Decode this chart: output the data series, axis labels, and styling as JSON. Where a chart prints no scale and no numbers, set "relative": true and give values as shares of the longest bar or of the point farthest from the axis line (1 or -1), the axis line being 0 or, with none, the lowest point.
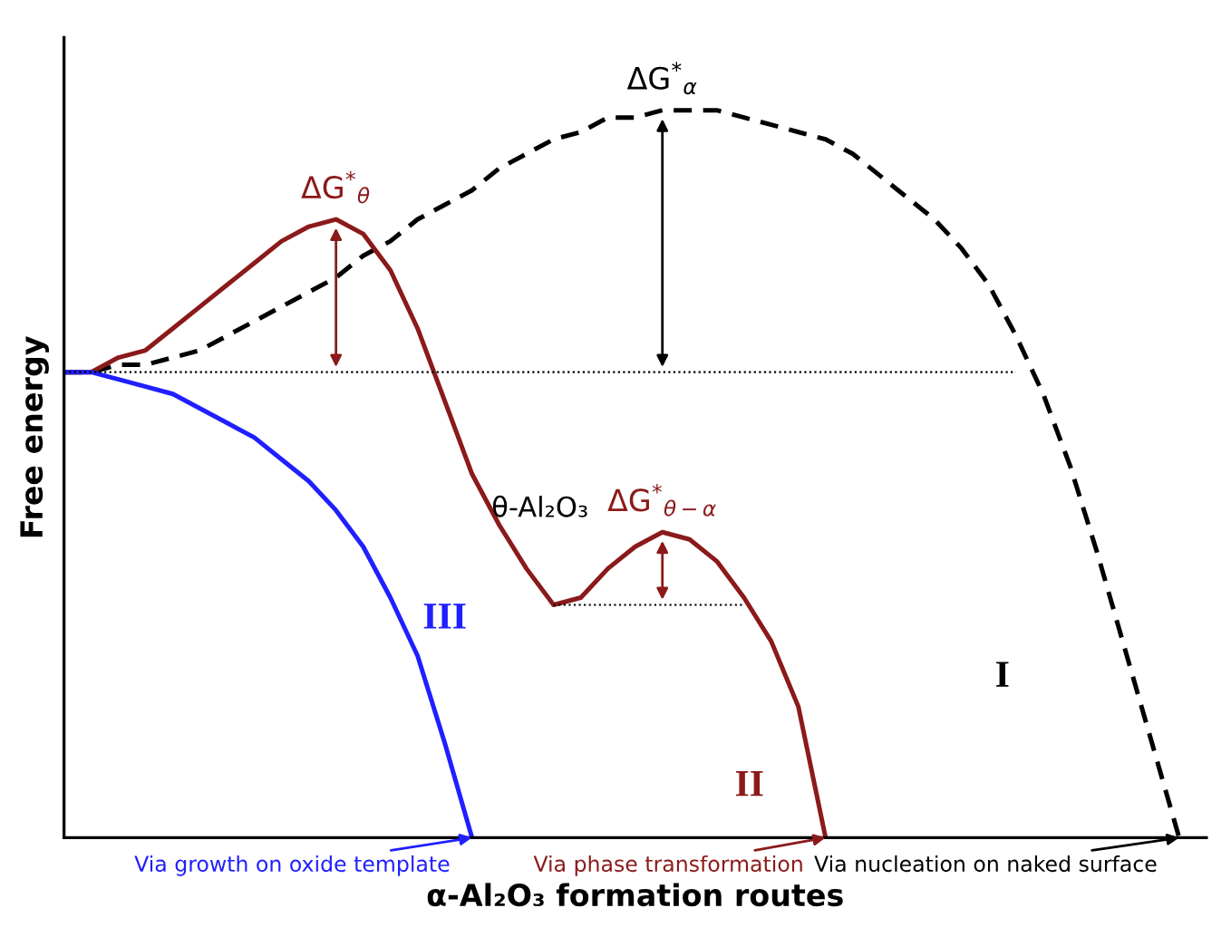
{
  "chart_data": {
    "type": "line",
    "relative": true,
    "xlabel": "α-Al₂O₃ formation routes",
    "ylabel": "Free energy",
    "categories": [
      null,
      null,
      null,
      null,
      null,
      null,
      null,
      null,
      null,
      null,
      null,
      null,
      null,
      null,
      null,
      null,
      null,
      null,
      null,
      null,
      null,
      null,
      null,
      null,
      null,
      null,
      null,
      null,
      null,
      null,
      null,
      null,
      null,
      null,
      null,
      null,
      null,
      null,
      null,
      null,
      null,
      null
    ],
    "series": [
      {
        "name": "I",
        "color": "#000000",
        "line_style": "dashed",
        "values": [
          0.64,
          0.64,
          0.65,
          0.65,
          0.66,
          0.67,
          0.69,
          0.71,
          0.73,
          0.75,
          0.77,
          0.8,
          0.82,
          0.85,
          0.87,
          0.89,
          0.92,
          0.94,
          0.96,
          0.97,
          0.99,
          0.99,
          1.0,
          1.0,
          1.0,
          0.99,
          0.98,
          0.97,
          0.96,
          0.94,
          0.91,
          0.88,
          0.85,
          0.81,
          0.76,
          0.69,
          0.61,
          0.51,
          0.39,
          0.26,
          0.13,
          0
        ]
      },
      {
        "name": "II",
        "color": "#8b1a1a",
        "line_style": "solid",
        "values": [
          0.64,
          0.64,
          0.66,
          0.67,
          0.7,
          0.73,
          0.76,
          0.79,
          0.82,
          0.84,
          0.85,
          0.83,
          0.78,
          0.7,
          0.6,
          0.5,
          0.43,
          0.37,
          0.32,
          0.33,
          0.37,
          0.4,
          0.42,
          0.41,
          0.38,
          0.33,
          0.27,
          0.18,
          0,
          null,
          null,
          null,
          null,
          null,
          null,
          null,
          null,
          null,
          null,
          null,
          null,
          null
        ]
      },
      {
        "name": "III",
        "color": "#1f1fff",
        "line_style": "solid",
        "values": [
          0.64,
          0.64,
          0.63,
          0.62,
          0.61,
          0.59,
          0.57,
          0.55,
          0.52,
          0.49,
          0.45,
          0.4,
          0.33,
          0.25,
          0.13,
          0,
          null,
          null,
          null,
          null,
          null,
          null,
          null,
          null,
          null,
          null,
          null,
          null,
          null,
          null,
          null,
          null,
          null,
          null,
          null,
          null,
          null,
          null,
          null,
          null,
          null,
          null
        ]
      },
      {
        "color": "#000000",
        "line_style": "dotted",
        "values": [
          0.64,
          0.64,
          0.64,
          0.64,
          0.64,
          0.64,
          0.64,
          0.64,
          0.64,
          0.64,
          0.64,
          0.64,
          0.64,
          0.64,
          0.64,
          0.64,
          0.64,
          0.64,
          0.64,
          0.64,
          0.64,
          0.64,
          0.64,
          0.64,
          0.64,
          0.64,
          0.64,
          0.64,
          0.64,
          0.64,
          0.64,
          0.64,
          0.64,
          0.64,
          0.64,
          0.64,
          null,
          null,
          null,
          null,
          null,
          null
        ]
      },
      {
        "color": "#000000",
        "line_style": "dotted",
        "values": [
          null,
          null,
          null,
          null,
          null,
          null,
          null,
          null,
          null,
          null,
          null,
          null,
          null,
          null,
          null,
          null,
          null,
          null,
          0.32,
          0.32,
          0.32,
          0.32,
          0.32,
          0.32,
          0.32,
          0.32,
          null,
          null,
          null,
          null,
          null,
          null,
          null,
          null,
          null,
          null,
          null,
          null,
          null,
          null,
          null,
          null
        ]
      }
    ],
    "annotations": [
      "ΔG$^{*}$$_{θ}$",
      "ΔG$^{*}$$_{α}$",
      "ΔG$^{*}$$_{θ−α}$",
      "θ-Al₂O₃",
      "Via growth on oxide template",
      "Via phase transformation",
      "Via nucleation on naked surface"
    ]
  }
}
